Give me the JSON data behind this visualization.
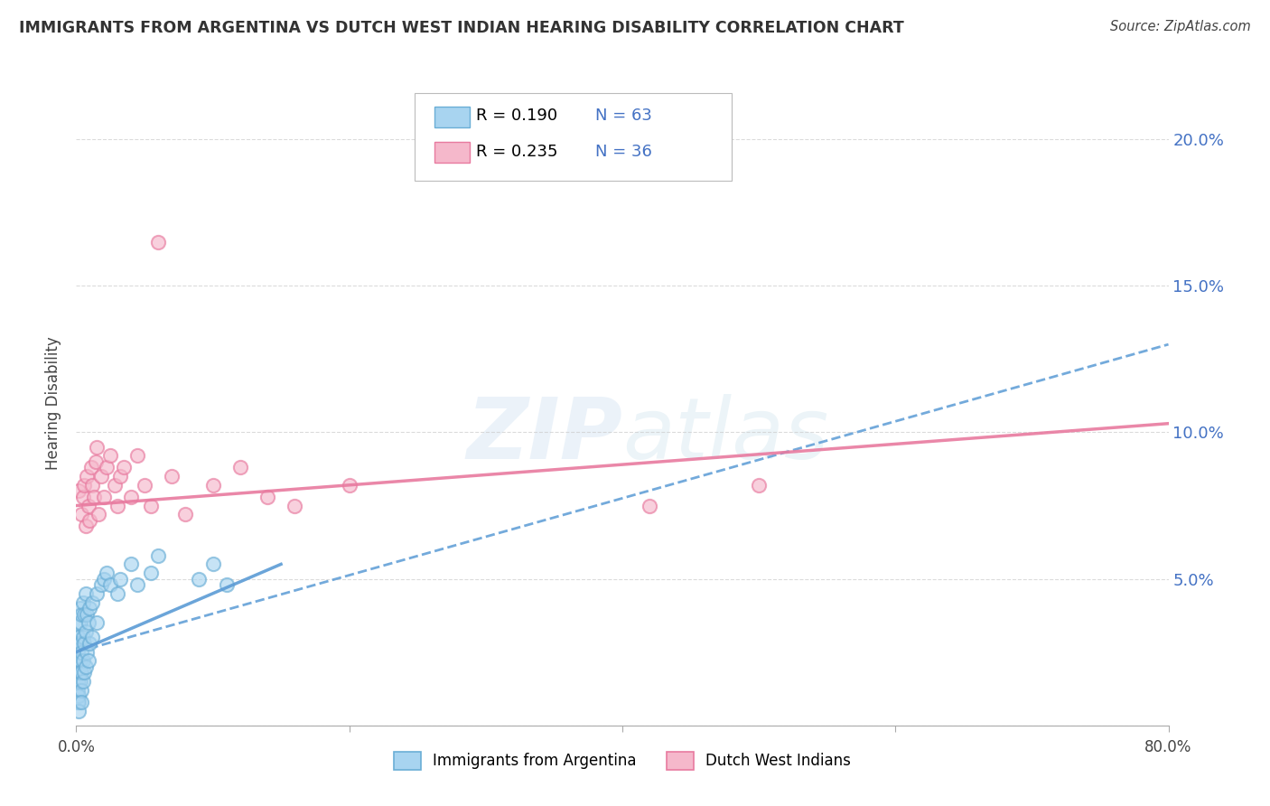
{
  "title": "IMMIGRANTS FROM ARGENTINA VS DUTCH WEST INDIAN HEARING DISABILITY CORRELATION CHART",
  "source": "Source: ZipAtlas.com",
  "ylabel": "Hearing Disability",
  "R1": 0.19,
  "N1": 63,
  "R2": 0.235,
  "N2": 36,
  "color1": "#a8d4f0",
  "color2": "#f5b8cb",
  "border1_color": "#6aaed6",
  "border2_color": "#e87a9f",
  "trend1_color": "#5b9bd5",
  "trend2_color": "#e87a9f",
  "watermark": "ZIPatlas",
  "xlim": [
    0.0,
    0.8
  ],
  "ylim": [
    0.0,
    0.22
  ],
  "background_color": "#ffffff",
  "legend1_label": "Immigrants from Argentina",
  "legend2_label": "Dutch West Indians",
  "ytick_color": "#4472C4",
  "scatter1_x": [
    0.001,
    0.001,
    0.001,
    0.001,
    0.001,
    0.001,
    0.001,
    0.001,
    0.001,
    0.001,
    0.002,
    0.002,
    0.002,
    0.002,
    0.002,
    0.002,
    0.002,
    0.002,
    0.002,
    0.003,
    0.003,
    0.003,
    0.003,
    0.003,
    0.003,
    0.004,
    0.004,
    0.004,
    0.004,
    0.004,
    0.005,
    0.005,
    0.005,
    0.005,
    0.006,
    0.006,
    0.006,
    0.007,
    0.007,
    0.007,
    0.008,
    0.008,
    0.009,
    0.009,
    0.01,
    0.01,
    0.012,
    0.012,
    0.015,
    0.015,
    0.018,
    0.02,
    0.022,
    0.025,
    0.03,
    0.032,
    0.04,
    0.045,
    0.055,
    0.06,
    0.09,
    0.1,
    0.11
  ],
  "scatter1_y": [
    0.03,
    0.02,
    0.028,
    0.015,
    0.022,
    0.018,
    0.025,
    0.01,
    0.012,
    0.008,
    0.035,
    0.028,
    0.022,
    0.015,
    0.018,
    0.01,
    0.008,
    0.005,
    0.03,
    0.04,
    0.028,
    0.022,
    0.015,
    0.035,
    0.018,
    0.038,
    0.025,
    0.018,
    0.012,
    0.008,
    0.042,
    0.03,
    0.022,
    0.015,
    0.038,
    0.028,
    0.018,
    0.045,
    0.032,
    0.02,
    0.038,
    0.025,
    0.035,
    0.022,
    0.04,
    0.028,
    0.042,
    0.03,
    0.045,
    0.035,
    0.048,
    0.05,
    0.052,
    0.048,
    0.045,
    0.05,
    0.055,
    0.048,
    0.052,
    0.058,
    0.05,
    0.055,
    0.048
  ],
  "scatter2_x": [
    0.002,
    0.004,
    0.005,
    0.006,
    0.007,
    0.008,
    0.009,
    0.01,
    0.011,
    0.012,
    0.013,
    0.014,
    0.015,
    0.016,
    0.018,
    0.02,
    0.022,
    0.025,
    0.028,
    0.03,
    0.032,
    0.035,
    0.04,
    0.045,
    0.05,
    0.055,
    0.06,
    0.07,
    0.08,
    0.1,
    0.12,
    0.14,
    0.16,
    0.2,
    0.42,
    0.5
  ],
  "scatter2_y": [
    0.08,
    0.072,
    0.078,
    0.082,
    0.068,
    0.085,
    0.075,
    0.07,
    0.088,
    0.082,
    0.078,
    0.09,
    0.095,
    0.072,
    0.085,
    0.078,
    0.088,
    0.092,
    0.082,
    0.075,
    0.085,
    0.088,
    0.078,
    0.092,
    0.082,
    0.075,
    0.165,
    0.085,
    0.072,
    0.082,
    0.088,
    0.078,
    0.075,
    0.082,
    0.075,
    0.082
  ],
  "yticks": [
    0.0,
    0.05,
    0.1,
    0.15,
    0.2
  ],
  "ytick_labels": [
    "",
    "5.0%",
    "10.0%",
    "15.0%",
    "20.0%"
  ],
  "xticks": [
    0.0,
    0.2,
    0.4,
    0.6,
    0.8
  ],
  "xtick_labels": [
    "0.0%",
    "",
    "",
    "",
    "80.0%"
  ]
}
